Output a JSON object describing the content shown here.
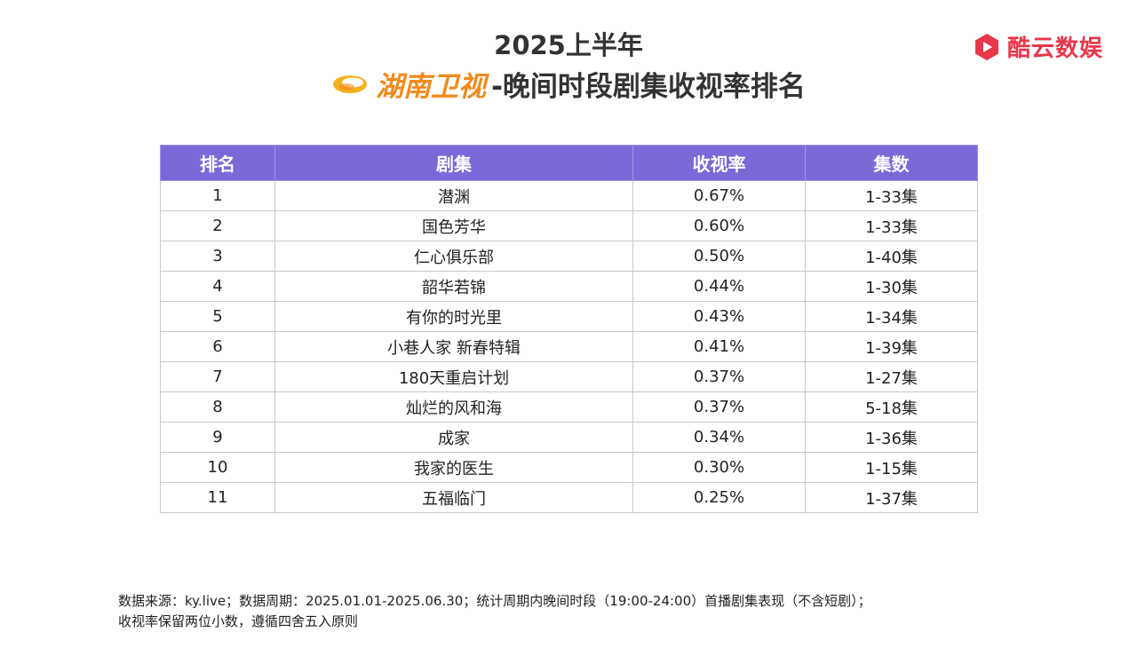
{
  "header": {
    "title_line1": "2025上半年",
    "channel": "湖南卫视",
    "title_line2_rest": "-晚间时段剧集收视率排名"
  },
  "brand": {
    "name": "酷云数娱",
    "color": "#e8374a"
  },
  "colors": {
    "header_bg": "#7a6ad8",
    "channel": "#f28a1d"
  },
  "table": {
    "headers": [
      "排名",
      "剧集",
      "收视率",
      "集数"
    ],
    "rows": [
      [
        "1",
        "潜渊",
        "0.67%",
        "1-33集"
      ],
      [
        "2",
        "国色芳华",
        "0.60%",
        "1-33集"
      ],
      [
        "3",
        "仁心俱乐部",
        "0.50%",
        "1-40集"
      ],
      [
        "4",
        "韶华若锦",
        "0.44%",
        "1-30集"
      ],
      [
        "5",
        "有你的时光里",
        "0.43%",
        "1-34集"
      ],
      [
        "6",
        "小巷人家 新春特辑",
        "0.41%",
        "1-39集"
      ],
      [
        "7",
        "180天重启计划",
        "0.37%",
        "1-27集"
      ],
      [
        "8",
        "灿烂的风和海",
        "0.37%",
        "5-18集"
      ],
      [
        "9",
        "成家",
        "0.34%",
        "1-36集"
      ],
      [
        "10",
        "我家的医生",
        "0.30%",
        "1-15集"
      ],
      [
        "11",
        "五福临门",
        "0.25%",
        "1-37集"
      ]
    ]
  },
  "footer": {
    "line1": "数据来源：ky.live；数据周期：2025.01.01-2025.06.30；统计周期内晚间时段（19:00-24:00）首播剧集表现（不含短剧）；",
    "line2": "收视率保留两位小数，遵循四舍五入原则"
  }
}
